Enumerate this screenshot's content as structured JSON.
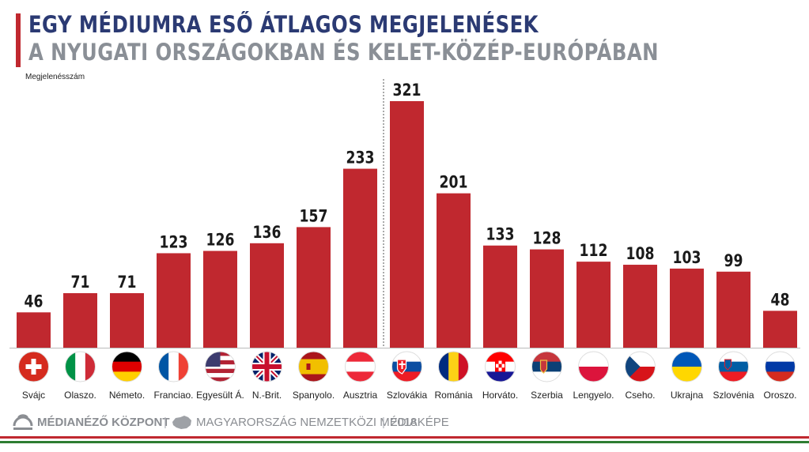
{
  "header": {
    "title_line1": "EGY MÉDIUMRA ESŐ ÁTLAGOS MEGJELENÉSEK",
    "title_line2": "A NYUGATI ORSZÁGOKBAN ÉS KELET-KÖZÉP-EURÓPÁBAN"
  },
  "colors": {
    "bar": "#c0282f",
    "title": "#2b3a73",
    "subtitle": "#8a8f96",
    "accent_green": "#2e7d32"
  },
  "footer": {
    "brand": "MÉDIANÉZŐ KÖZPONT",
    "separator": "|",
    "project": "MAGYARORSZÁG NEMZETKÖZI MÉDIAKÉPE",
    "separator2": "|",
    "year": "2018"
  },
  "chart_data": {
    "type": "bar",
    "ylabel": "Megjelenésszám",
    "categories": [
      "Svájc",
      "Olaszo.",
      "Németo.",
      "Franciao.",
      "Egyesült Á.",
      "N.-Brit.",
      "Spanyolo.",
      "Ausztria",
      "Szlovákia",
      "Románia",
      "Horváto.",
      "Szerbia",
      "Lengyelo.",
      "Cseho.",
      "Ukrajna",
      "Szlovénia",
      "Oroszo."
    ],
    "values": [
      46,
      71,
      71,
      123,
      126,
      136,
      157,
      233,
      321,
      201,
      133,
      128,
      112,
      108,
      103,
      99,
      48
    ],
    "flag_icons": [
      "flag-switzerland-icon",
      "flag-italy-icon",
      "flag-germany-icon",
      "flag-france-icon",
      "flag-usa-icon",
      "flag-uk-icon",
      "flag-spain-icon",
      "flag-austria-icon",
      "flag-slovakia-icon",
      "flag-romania-icon",
      "flag-croatia-icon",
      "flag-serbia-icon",
      "flag-poland-icon",
      "flag-czechia-icon",
      "flag-ukraine-icon",
      "flag-slovenia-icon",
      "flag-russia-icon"
    ],
    "ylim": [
      0,
      321
    ],
    "grid": false,
    "legend": "none",
    "divider_after_category": "Ausztria"
  }
}
